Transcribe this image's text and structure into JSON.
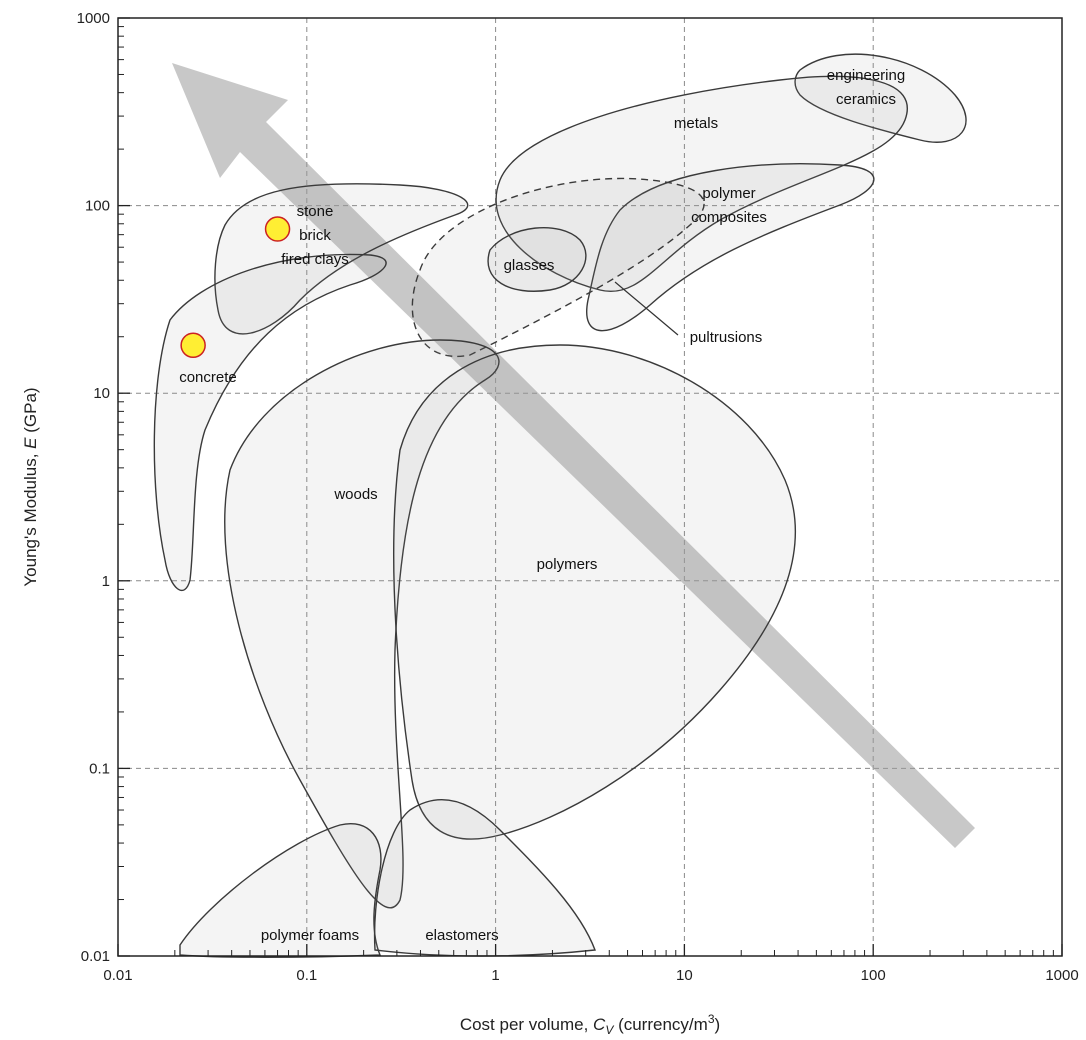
{
  "chart_data": {
    "type": "scatter",
    "title": "",
    "xlabel_prefix": "Cost per volume, ",
    "xlabel_symbol": "C",
    "xlabel_sub": "V",
    "xlabel_units": " (currency/m",
    "xlabel_sup": "3",
    "xlabel_close": ")",
    "ylabel_prefix": "Young's Modulus, ",
    "ylabel_symbol": "E",
    "ylabel_units": " (GPa)",
    "x_scale": "log",
    "y_scale": "log",
    "xlim": [
      0.01,
      1000
    ],
    "ylim": [
      0.01,
      1000
    ],
    "x_ticks": [
      "0.01",
      "0.1",
      "1",
      "10",
      "100",
      "1000"
    ],
    "y_ticks": [
      "0.01",
      "0.1",
      "1",
      "10",
      "100",
      "1000"
    ],
    "grid": true,
    "regions": [
      {
        "name": "engineering",
        "name2": "ceramics"
      },
      {
        "name": "metals"
      },
      {
        "name": "polymer",
        "name2": "composites"
      },
      {
        "name": "stone",
        "name2": "brick",
        "name3": "fired clays"
      },
      {
        "name": "glasses"
      },
      {
        "name": "pultrusions"
      },
      {
        "name": "concrete"
      },
      {
        "name": "woods"
      },
      {
        "name": "polymers"
      },
      {
        "name": "polymer foams"
      },
      {
        "name": "elastomers"
      }
    ],
    "highlighted_points": [
      {
        "label": "brick",
        "x": 0.07,
        "y": 75
      },
      {
        "label": "concrete",
        "x": 0.025,
        "y": 18
      }
    ],
    "highlight_color": "#ffee33",
    "highlight_stroke": "#cc2222",
    "trend_arrow_color": "#9a9a9a"
  }
}
